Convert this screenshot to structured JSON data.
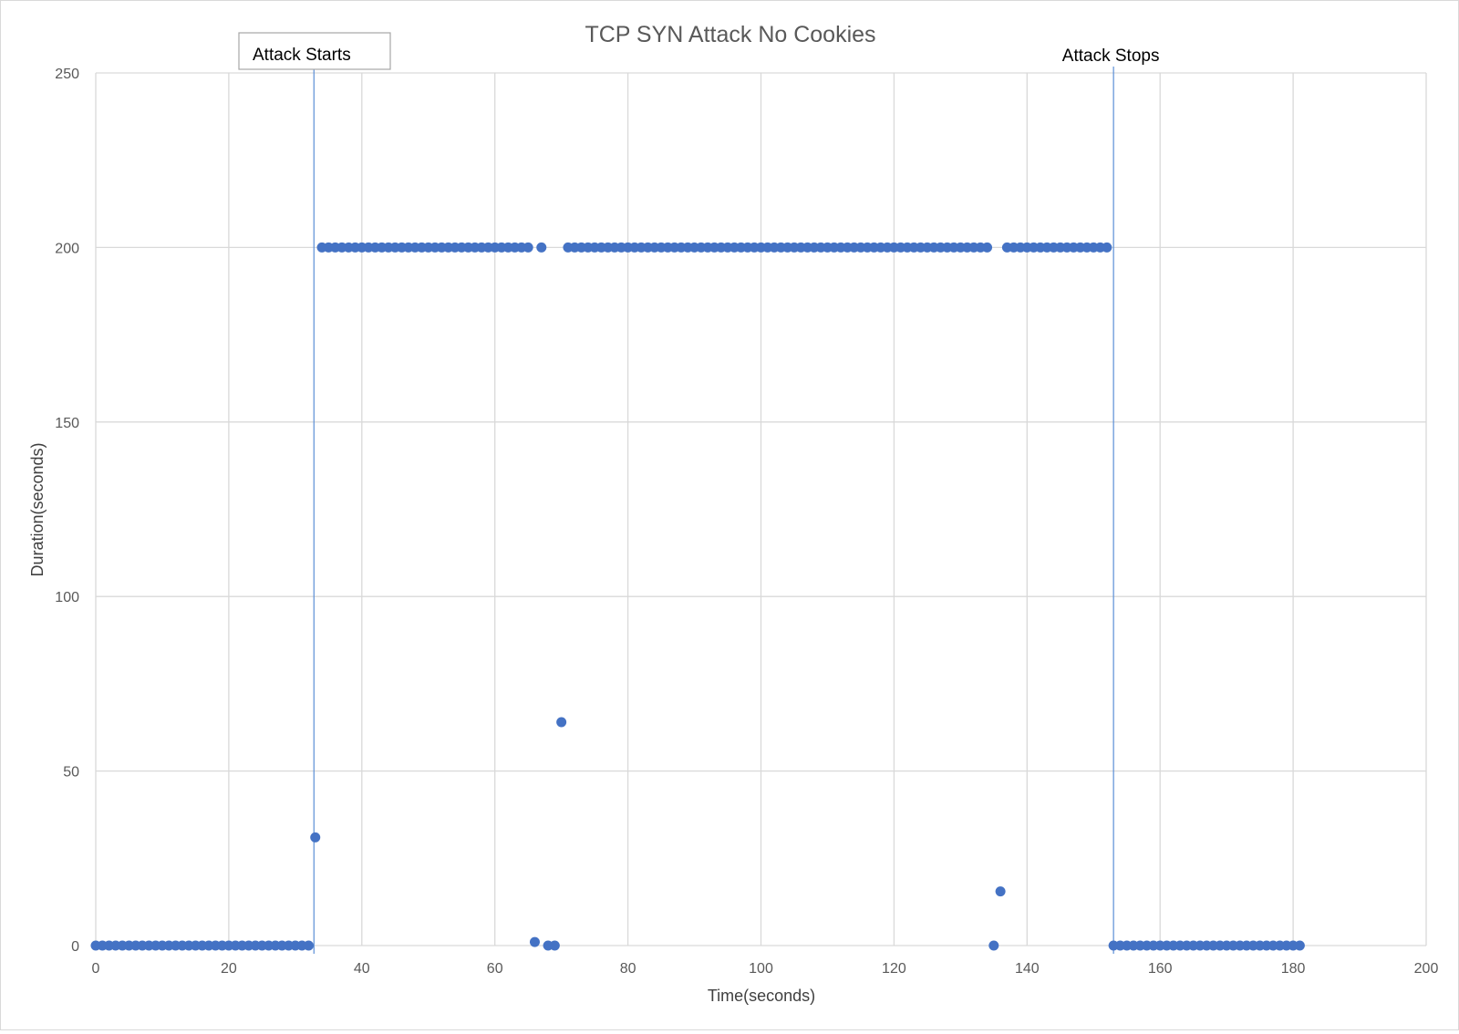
{
  "chart_data": {
    "type": "scatter",
    "title": "TCP SYN Attack No Cookies",
    "xlabel": "Time(seconds)",
    "ylabel": "Duration(seconds)",
    "xlim": [
      0,
      200
    ],
    "ylim": [
      0,
      250
    ],
    "x_ticks": [
      0,
      20,
      40,
      60,
      80,
      100,
      120,
      140,
      160,
      180,
      200
    ],
    "y_ticks": [
      0,
      50,
      100,
      150,
      200,
      250
    ],
    "grid": true,
    "legend": "none",
    "colors": {
      "points": "#4472c4",
      "marker_lines": "#5b8fd6"
    },
    "annotations": [
      {
        "text": "Attack Starts",
        "x": 32.8,
        "boxed": true
      },
      {
        "text": "Attack Stops",
        "x": 153,
        "boxed": false
      }
    ],
    "series": [
      {
        "points": [
          [
            0,
            0
          ],
          [
            1,
            0
          ],
          [
            2,
            0
          ],
          [
            3,
            0
          ],
          [
            4,
            0
          ],
          [
            5,
            0
          ],
          [
            6,
            0
          ],
          [
            7,
            0
          ],
          [
            8,
            0
          ],
          [
            9,
            0
          ],
          [
            10,
            0
          ],
          [
            11,
            0
          ],
          [
            12,
            0
          ],
          [
            13,
            0
          ],
          [
            14,
            0
          ],
          [
            15,
            0
          ],
          [
            16,
            0
          ],
          [
            17,
            0
          ],
          [
            18,
            0
          ],
          [
            19,
            0
          ],
          [
            20,
            0
          ],
          [
            21,
            0
          ],
          [
            22,
            0
          ],
          [
            23,
            0
          ],
          [
            24,
            0
          ],
          [
            25,
            0
          ],
          [
            26,
            0
          ],
          [
            27,
            0
          ],
          [
            28,
            0
          ],
          [
            29,
            0
          ],
          [
            30,
            0
          ],
          [
            31,
            0
          ],
          [
            32,
            0
          ],
          [
            33,
            31
          ],
          [
            34,
            200
          ],
          [
            35,
            200
          ],
          [
            36,
            200
          ],
          [
            37,
            200
          ],
          [
            38,
            200
          ],
          [
            39,
            200
          ],
          [
            40,
            200
          ],
          [
            41,
            200
          ],
          [
            42,
            200
          ],
          [
            43,
            200
          ],
          [
            44,
            200
          ],
          [
            45,
            200
          ],
          [
            46,
            200
          ],
          [
            47,
            200
          ],
          [
            48,
            200
          ],
          [
            49,
            200
          ],
          [
            50,
            200
          ],
          [
            51,
            200
          ],
          [
            52,
            200
          ],
          [
            53,
            200
          ],
          [
            54,
            200
          ],
          [
            55,
            200
          ],
          [
            56,
            200
          ],
          [
            57,
            200
          ],
          [
            58,
            200
          ],
          [
            59,
            200
          ],
          [
            60,
            200
          ],
          [
            61,
            200
          ],
          [
            62,
            200
          ],
          [
            63,
            200
          ],
          [
            64,
            200
          ],
          [
            65,
            200
          ],
          [
            66,
            1
          ],
          [
            67,
            200
          ],
          [
            68,
            0
          ],
          [
            69,
            0
          ],
          [
            70,
            64
          ],
          [
            71,
            200
          ],
          [
            72,
            200
          ],
          [
            73,
            200
          ],
          [
            74,
            200
          ],
          [
            75,
            200
          ],
          [
            76,
            200
          ],
          [
            77,
            200
          ],
          [
            78,
            200
          ],
          [
            79,
            200
          ],
          [
            80,
            200
          ],
          [
            81,
            200
          ],
          [
            82,
            200
          ],
          [
            83,
            200
          ],
          [
            84,
            200
          ],
          [
            85,
            200
          ],
          [
            86,
            200
          ],
          [
            87,
            200
          ],
          [
            88,
            200
          ],
          [
            89,
            200
          ],
          [
            90,
            200
          ],
          [
            91,
            200
          ],
          [
            92,
            200
          ],
          [
            93,
            200
          ],
          [
            94,
            200
          ],
          [
            95,
            200
          ],
          [
            96,
            200
          ],
          [
            97,
            200
          ],
          [
            98,
            200
          ],
          [
            99,
            200
          ],
          [
            100,
            200
          ],
          [
            101,
            200
          ],
          [
            102,
            200
          ],
          [
            103,
            200
          ],
          [
            104,
            200
          ],
          [
            105,
            200
          ],
          [
            106,
            200
          ],
          [
            107,
            200
          ],
          [
            108,
            200
          ],
          [
            109,
            200
          ],
          [
            110,
            200
          ],
          [
            111,
            200
          ],
          [
            112,
            200
          ],
          [
            113,
            200
          ],
          [
            114,
            200
          ],
          [
            115,
            200
          ],
          [
            116,
            200
          ],
          [
            117,
            200
          ],
          [
            118,
            200
          ],
          [
            119,
            200
          ],
          [
            120,
            200
          ],
          [
            121,
            200
          ],
          [
            122,
            200
          ],
          [
            123,
            200
          ],
          [
            124,
            200
          ],
          [
            125,
            200
          ],
          [
            126,
            200
          ],
          [
            127,
            200
          ],
          [
            128,
            200
          ],
          [
            129,
            200
          ],
          [
            130,
            200
          ],
          [
            131,
            200
          ],
          [
            132,
            200
          ],
          [
            133,
            200
          ],
          [
            134,
            200
          ],
          [
            135,
            0
          ],
          [
            136,
            15.5
          ],
          [
            137,
            200
          ],
          [
            138,
            200
          ],
          [
            139,
            200
          ],
          [
            140,
            200
          ],
          [
            141,
            200
          ],
          [
            142,
            200
          ],
          [
            143,
            200
          ],
          [
            144,
            200
          ],
          [
            145,
            200
          ],
          [
            146,
            200
          ],
          [
            147,
            200
          ],
          [
            148,
            200
          ],
          [
            149,
            200
          ],
          [
            150,
            200
          ],
          [
            151,
            200
          ],
          [
            152,
            200
          ],
          [
            153,
            0
          ],
          [
            154,
            0
          ],
          [
            155,
            0
          ],
          [
            156,
            0
          ],
          [
            157,
            0
          ],
          [
            158,
            0
          ],
          [
            159,
            0
          ],
          [
            160,
            0
          ],
          [
            161,
            0
          ],
          [
            162,
            0
          ],
          [
            163,
            0
          ],
          [
            164,
            0
          ],
          [
            165,
            0
          ],
          [
            166,
            0
          ],
          [
            167,
            0
          ],
          [
            168,
            0
          ],
          [
            169,
            0
          ],
          [
            170,
            0
          ],
          [
            171,
            0
          ],
          [
            172,
            0
          ],
          [
            173,
            0
          ],
          [
            174,
            0
          ],
          [
            175,
            0
          ],
          [
            176,
            0
          ],
          [
            177,
            0
          ],
          [
            178,
            0
          ],
          [
            179,
            0
          ],
          [
            180,
            0
          ],
          [
            181,
            0
          ]
        ]
      }
    ]
  }
}
